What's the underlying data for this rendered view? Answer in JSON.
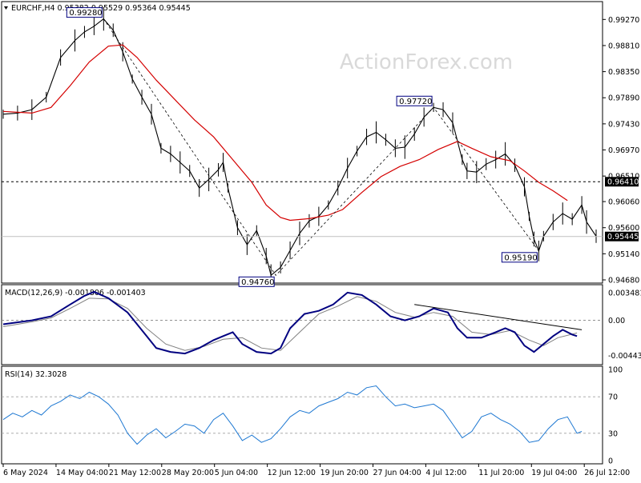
{
  "chart_data": {
    "type": "line",
    "instrument_header": "EURCHF,H4  0.95382 0.95529 0.95364 0.95445",
    "watermark": "ActionForex.com",
    "x_tick_labels": [
      "6 May 2024",
      "14 May 04:00",
      "21 May 12:00",
      "28 May 20:00",
      "5 Jun 04:00",
      "12 Jun 12:00",
      "19 Jun 20:00",
      "27 Jun 04:00",
      "4 Jul 12:00",
      "11 Jul 20:00",
      "19 Jul 04:00",
      "26 Jul 12:00"
    ],
    "price_panel": {
      "ylim": [
        0.9468,
        0.995
      ],
      "y_tick_labels": [
        "0.99270",
        "0.98810",
        "0.98350",
        "0.97890",
        "0.97430",
        "0.96970",
        "0.96510",
        "0.96060",
        "0.95600",
        "0.95140",
        "0.94680"
      ],
      "series": [
        {
          "role": "price",
          "color": "#000000",
          "points": [
            [
              0,
              0.976
            ],
            [
              3,
              0.9762
            ],
            [
              6,
              0.9768
            ],
            [
              9,
              0.979
            ],
            [
              12,
              0.986
            ],
            [
              15,
              0.989
            ],
            [
              17,
              0.9905
            ],
            [
              19,
              0.9915
            ],
            [
              21,
              0.9928
            ],
            [
              23,
              0.9908
            ],
            [
              25,
              0.987
            ],
            [
              27,
              0.9822
            ],
            [
              29,
              0.979
            ],
            [
              31,
              0.976
            ],
            [
              33,
              0.97
            ],
            [
              35,
              0.969
            ],
            [
              37,
              0.9675
            ],
            [
              39,
              0.966
            ],
            [
              41,
              0.963
            ],
            [
              43,
              0.9645
            ],
            [
              45,
              0.9662
            ],
            [
              46,
              0.9675
            ],
            [
              47,
              0.963
            ],
            [
              49,
              0.956
            ],
            [
              51,
              0.953
            ],
            [
              53,
              0.9555
            ],
            [
              55,
              0.951
            ],
            [
              56,
              0.9476
            ],
            [
              58,
              0.949
            ],
            [
              60,
              0.952
            ],
            [
              62,
              0.955
            ],
            [
              64,
              0.9572
            ],
            [
              66,
              0.958
            ],
            [
              68,
              0.96
            ],
            [
              70,
              0.963
            ],
            [
              72,
              0.9665
            ],
            [
              74,
              0.9695
            ],
            [
              76,
              0.972
            ],
            [
              78,
              0.9728
            ],
            [
              80,
              0.9715
            ],
            [
              82,
              0.97
            ],
            [
              84,
              0.9702
            ],
            [
              86,
              0.9725
            ],
            [
              88,
              0.9755
            ],
            [
              90,
              0.9772
            ],
            [
              92,
              0.9768
            ],
            [
              94,
              0.9745
            ],
            [
              96,
              0.968
            ],
            [
              97,
              0.966
            ],
            [
              99,
              0.9658
            ],
            [
              101,
              0.9672
            ],
            [
              103,
              0.968
            ],
            [
              105,
              0.969
            ],
            [
              107,
              0.967
            ],
            [
              109,
              0.9632
            ],
            [
              110,
              0.958
            ],
            [
              111,
              0.954
            ],
            [
              112,
              0.9519
            ],
            [
              113,
              0.9545
            ],
            [
              115,
              0.957
            ],
            [
              117,
              0.9585
            ],
            [
              119,
              0.9575
            ],
            [
              121,
              0.96
            ],
            [
              122,
              0.957
            ],
            [
              124,
              0.9545
            ]
          ]
        },
        {
          "role": "moving average",
          "color": "#d40000",
          "points": [
            [
              0,
              0.9765
            ],
            [
              6,
              0.9762
            ],
            [
              10,
              0.9772
            ],
            [
              14,
              0.981
            ],
            [
              18,
              0.9852
            ],
            [
              22,
              0.988
            ],
            [
              25,
              0.9882
            ],
            [
              28,
              0.986
            ],
            [
              32,
              0.982
            ],
            [
              36,
              0.9785
            ],
            [
              40,
              0.975
            ],
            [
              44,
              0.972
            ],
            [
              48,
              0.968
            ],
            [
              52,
              0.964
            ],
            [
              55,
              0.96
            ],
            [
              58,
              0.9578
            ],
            [
              60,
              0.9573
            ],
            [
              64,
              0.9576
            ],
            [
              68,
              0.9582
            ],
            [
              71,
              0.9592
            ],
            [
              75,
              0.9622
            ],
            [
              79,
              0.965
            ],
            [
              83,
              0.9668
            ],
            [
              87,
              0.968
            ],
            [
              91,
              0.9698
            ],
            [
              95,
              0.9712
            ],
            [
              98,
              0.97
            ],
            [
              102,
              0.9685
            ],
            [
              106,
              0.9678
            ],
            [
              109,
              0.966
            ],
            [
              112,
              0.964
            ],
            [
              115,
              0.9625
            ],
            [
              118,
              0.9608
            ]
          ]
        }
      ],
      "zigzag": [
        [
          21,
          0.9928
        ],
        [
          57,
          0.9476
        ],
        [
          90,
          0.9772
        ],
        [
          112,
          0.9519
        ]
      ],
      "extreme_labels": [
        {
          "label": "0.99280",
          "x": 21,
          "y": 0.9928
        },
        {
          "label": "0.94760",
          "x": 57,
          "y": 0.9476
        },
        {
          "label": "0.97720",
          "x": 90,
          "y": 0.9772
        },
        {
          "label": "0.95190",
          "x": 112,
          "y": 0.9519
        }
      ],
      "horizontal_levels": [
        {
          "value": 0.9641,
          "label": "0.96410",
          "style": "dashed",
          "color": "#000000"
        },
        {
          "value": 0.95445,
          "label": "0.95445",
          "style": "solid",
          "color": "#c0c0c0"
        }
      ]
    },
    "macd_panel": {
      "title": "MACD(12,26,9) -0.001806 -0.001403",
      "ylim": [
        -0.0052,
        0.0041
      ],
      "y_tick_labels": [
        "0.003481",
        "0.00",
        "-0.004436"
      ],
      "series": [
        {
          "role": "macd",
          "color": "#000080",
          "points": [
            [
              0,
              -0.0005
            ],
            [
              6,
              0.0
            ],
            [
              10,
              0.0005
            ],
            [
              14,
              0.002
            ],
            [
              17,
              0.0031
            ],
            [
              19,
              0.0036
            ],
            [
              22,
              0.0028
            ],
            [
              26,
              0.001
            ],
            [
              30,
              -0.002
            ],
            [
              32,
              -0.0035
            ],
            [
              35,
              -0.004
            ],
            [
              38,
              -0.0042
            ],
            [
              41,
              -0.0035
            ],
            [
              44,
              -0.0025
            ],
            [
              46,
              -0.002
            ],
            [
              48,
              -0.0015
            ],
            [
              50,
              -0.003
            ],
            [
              53,
              -0.004
            ],
            [
              56,
              -0.0042
            ],
            [
              58,
              -0.0035
            ],
            [
              60,
              -0.001
            ],
            [
              63,
              0.0008
            ],
            [
              66,
              0.0012
            ],
            [
              69,
              0.002
            ],
            [
              72,
              0.0035
            ],
            [
              75,
              0.0032
            ],
            [
              78,
              0.002
            ],
            [
              81,
              0.0005
            ],
            [
              84,
              0.0
            ],
            [
              87,
              0.0005
            ],
            [
              90,
              0.0015
            ],
            [
              93,
              0.001
            ],
            [
              95,
              -0.001
            ],
            [
              97,
              -0.0022
            ],
            [
              100,
              -0.0022
            ],
            [
              103,
              -0.0015
            ],
            [
              105,
              -0.001
            ],
            [
              107,
              -0.0015
            ],
            [
              109,
              -0.0032
            ],
            [
              111,
              -0.004
            ],
            [
              113,
              -0.003
            ],
            [
              115,
              -0.002
            ],
            [
              117,
              -0.0012
            ],
            [
              119,
              -0.0018
            ],
            [
              120,
              -0.002
            ]
          ]
        },
        {
          "role": "signal",
          "color": "#808080",
          "points": [
            [
              0,
              -0.0008
            ],
            [
              6,
              -0.0002
            ],
            [
              10,
              0.0003
            ],
            [
              14,
              0.0015
            ],
            [
              18,
              0.0028
            ],
            [
              22,
              0.0027
            ],
            [
              26,
              0.0015
            ],
            [
              30,
              -0.001
            ],
            [
              34,
              -0.003
            ],
            [
              38,
              -0.0038
            ],
            [
              42,
              -0.0033
            ],
            [
              46,
              -0.0024
            ],
            [
              50,
              -0.0022
            ],
            [
              54,
              -0.0035
            ],
            [
              58,
              -0.0038
            ],
            [
              62,
              -0.0015
            ],
            [
              66,
              0.0008
            ],
            [
              70,
              0.0018
            ],
            [
              74,
              0.003
            ],
            [
              78,
              0.0024
            ],
            [
              82,
              0.001
            ],
            [
              86,
              0.0004
            ],
            [
              90,
              0.001
            ],
            [
              94,
              0.0005
            ],
            [
              98,
              -0.0015
            ],
            [
              102,
              -0.0018
            ],
            [
              106,
              -0.0013
            ],
            [
              110,
              -0.0025
            ],
            [
              113,
              -0.0032
            ],
            [
              116,
              -0.0022
            ],
            [
              120,
              -0.0016
            ]
          ]
        }
      ],
      "trendline": [
        [
          86,
          0.002
        ],
        [
          121,
          -0.0012
        ]
      ]
    },
    "rsi_panel": {
      "title": "RSI(14) 32.3028",
      "ylim": [
        0,
        100
      ],
      "y_tick_labels": [
        "100",
        "70",
        "30",
        "0"
      ],
      "levels": [
        70,
        30
      ],
      "series": [
        {
          "role": "rsi",
          "color": "#1e78d2",
          "points": [
            [
              0,
              45
            ],
            [
              2,
              52
            ],
            [
              4,
              48
            ],
            [
              6,
              55
            ],
            [
              8,
              50
            ],
            [
              10,
              60
            ],
            [
              12,
              65
            ],
            [
              14,
              72
            ],
            [
              16,
              68
            ],
            [
              18,
              75
            ],
            [
              20,
              70
            ],
            [
              22,
              62
            ],
            [
              24,
              50
            ],
            [
              26,
              30
            ],
            [
              28,
              18
            ],
            [
              30,
              28
            ],
            [
              32,
              35
            ],
            [
              34,
              25
            ],
            [
              36,
              32
            ],
            [
              38,
              40
            ],
            [
              40,
              38
            ],
            [
              42,
              30
            ],
            [
              44,
              45
            ],
            [
              46,
              52
            ],
            [
              48,
              38
            ],
            [
              50,
              22
            ],
            [
              52,
              28
            ],
            [
              54,
              20
            ],
            [
              56,
              24
            ],
            [
              58,
              35
            ],
            [
              60,
              48
            ],
            [
              62,
              55
            ],
            [
              64,
              52
            ],
            [
              66,
              60
            ],
            [
              68,
              64
            ],
            [
              70,
              68
            ],
            [
              72,
              75
            ],
            [
              74,
              72
            ],
            [
              76,
              80
            ],
            [
              78,
              82
            ],
            [
              80,
              70
            ],
            [
              82,
              60
            ],
            [
              84,
              62
            ],
            [
              86,
              58
            ],
            [
              88,
              60
            ],
            [
              90,
              62
            ],
            [
              92,
              55
            ],
            [
              94,
              40
            ],
            [
              96,
              25
            ],
            [
              98,
              32
            ],
            [
              100,
              48
            ],
            [
              102,
              52
            ],
            [
              104,
              45
            ],
            [
              106,
              40
            ],
            [
              108,
              32
            ],
            [
              110,
              20
            ],
            [
              112,
              22
            ],
            [
              114,
              35
            ],
            [
              116,
              45
            ],
            [
              118,
              48
            ],
            [
              120,
              30
            ],
            [
              121,
              32
            ]
          ]
        }
      ]
    }
  }
}
